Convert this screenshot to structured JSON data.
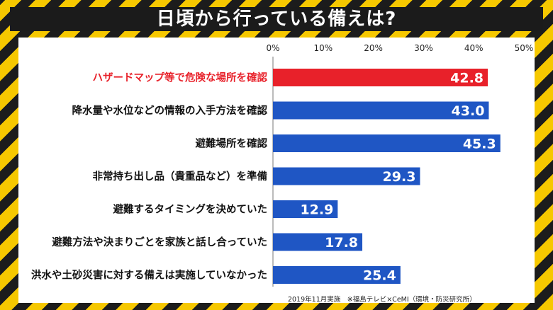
{
  "title": "日頃から行っている備えは?",
  "source": "2019年11月実施　※福島テレビ×CeMI（環境・防災研究所）",
  "colors": {
    "highlight": "#e8212a",
    "bar": "#1f56c4",
    "highlight_text": "#e8212a",
    "text": "#111111"
  },
  "chart_data": {
    "type": "bar",
    "orientation": "horizontal",
    "categories": [
      "ハザードマップ等で危険な場所を確認",
      "降水量や水位などの情報の入手方法を確認",
      "避難場所を確認",
      "非常持ち出し品（貴重品など）を準備",
      "避難するタイミングを決めていた",
      "避難方法や決まりごとを家族と話し合っていた",
      "洪水や土砂災害に対する備えは実施していなかった"
    ],
    "values": [
      42.8,
      43.0,
      45.3,
      29.3,
      12.9,
      17.8,
      25.4
    ],
    "value_labels": [
      "42.8",
      "43.0",
      "45.3",
      "29.3",
      "12.9",
      "17.8",
      "25.4"
    ],
    "highlight_index": 0,
    "xlim": [
      0,
      50
    ],
    "xticks": [
      0,
      10,
      20,
      30,
      40,
      50
    ],
    "xtick_labels": [
      "0%",
      "10%",
      "20%",
      "30%",
      "40%",
      "50%"
    ],
    "xlabel": "",
    "ylabel": "",
    "grid": false
  }
}
